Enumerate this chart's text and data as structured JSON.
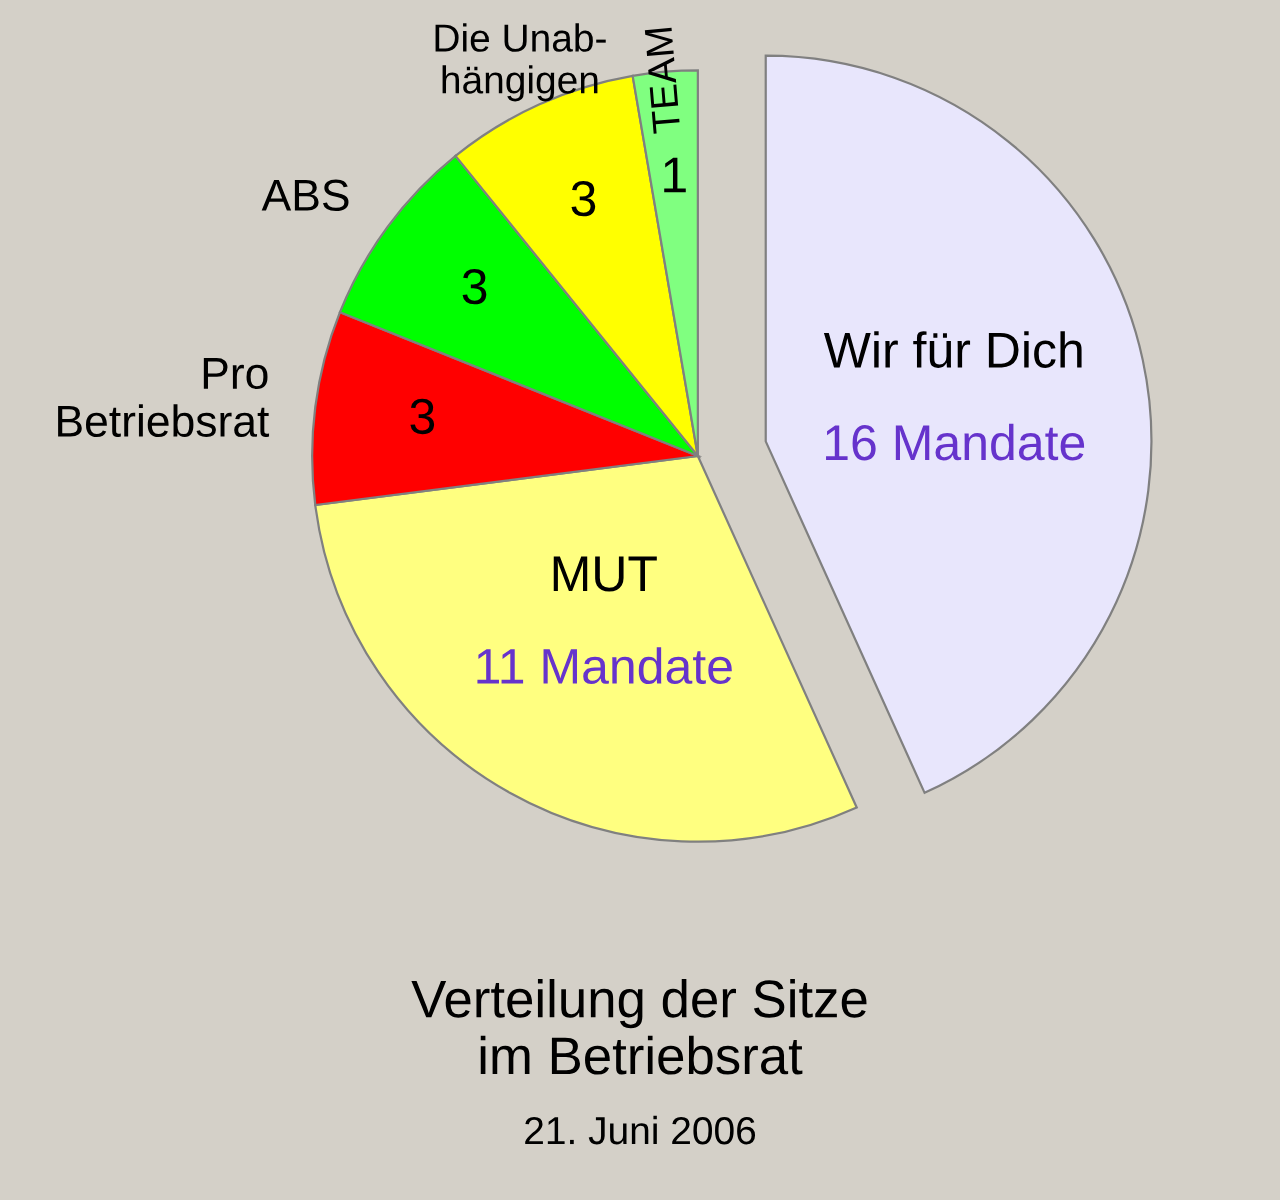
{
  "chart_data": {
    "type": "pie",
    "title": "Verteilung der Sitze\nim Betriebsrat",
    "subtitle": "21. Juni 2006",
    "categories": [
      "Wir für Dich",
      "MUT",
      "Pro\nBetriebsrat",
      "ABS",
      "Die Unab-\nhängigen",
      "TEAM"
    ],
    "values": [
      16,
      11,
      3,
      3,
      3,
      1
    ],
    "value_labels": [
      "16 Mandate",
      "11 Mandate",
      "3",
      "3",
      "3",
      "1"
    ],
    "colors": [
      "#e8e6fc",
      "#ffff80",
      "#ff0000",
      "#00ff00",
      "#ffff00",
      "#80ff80"
    ]
  }
}
